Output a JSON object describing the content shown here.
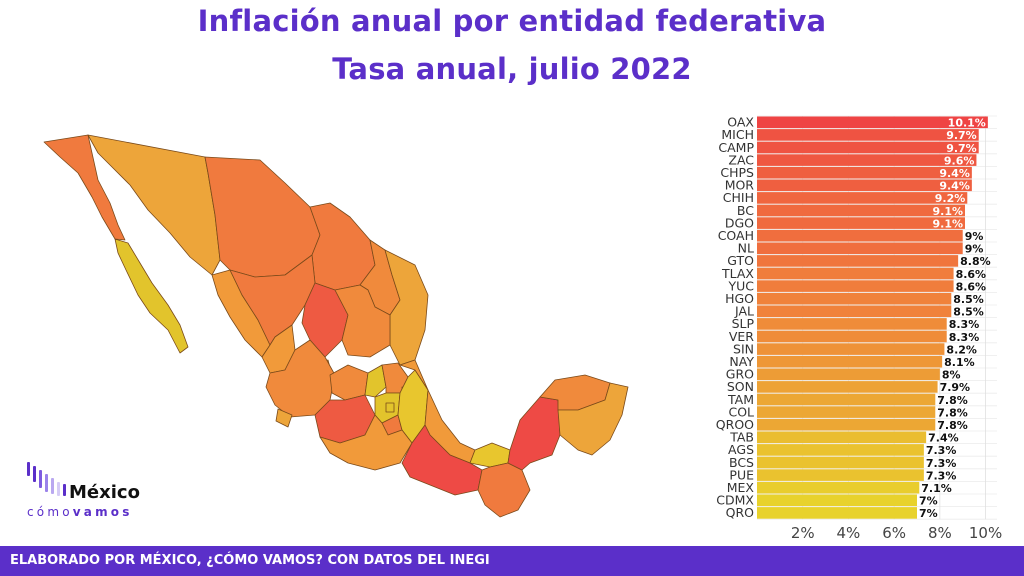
{
  "title_line1": "Inflación anual por entidad federativa",
  "title_line2": "Tasa anual, julio 2022",
  "logo": {
    "main": "México",
    "sub_a": "cómo",
    "sub_b": "vamos"
  },
  "footer": "ELABORADO POR MÉXICO, ¿CÓMO VAMOS? CON DATOS DEL INEGI",
  "colors": {
    "brand": "#5b2fc9",
    "high": "#ef4444",
    "mid": "#f07f3c",
    "low": "#e8d22c"
  },
  "chart_data": {
    "type": "bar",
    "orientation": "horizontal",
    "categories": [
      "OAX",
      "MICH",
      "CAMP",
      "ZAC",
      "CHPS",
      "MOR",
      "CHIH",
      "BC",
      "DGO",
      "COAH",
      "NL",
      "GTO",
      "TLAX",
      "YUC",
      "HGO",
      "JAL",
      "SLP",
      "VER",
      "SIN",
      "NAY",
      "GRO",
      "SON",
      "TAM",
      "COL",
      "QROO",
      "TAB",
      "AGS",
      "BCS",
      "PUE",
      "MEX",
      "CDMX",
      "QRO"
    ],
    "values": [
      10.1,
      9.7,
      9.7,
      9.6,
      9.4,
      9.4,
      9.2,
      9.1,
      9.1,
      9.0,
      9.0,
      8.8,
      8.6,
      8.6,
      8.5,
      8.5,
      8.3,
      8.3,
      8.2,
      8.1,
      8.0,
      7.9,
      7.8,
      7.8,
      7.8,
      7.4,
      7.3,
      7.3,
      7.3,
      7.1,
      7.0,
      7.0
    ],
    "labels": [
      "10.1%",
      "9.7%",
      "9.7%",
      "9.6%",
      "9.4%",
      "9.4%",
      "9.2%",
      "9.1%",
      "9.1%",
      "9%",
      "9%",
      "8.8%",
      "8.6%",
      "8.6%",
      "8.5%",
      "8.5%",
      "8.3%",
      "8.3%",
      "8.2%",
      "8.1%",
      "8%",
      "7.9%",
      "7.8%",
      "7.8%",
      "7.8%",
      "7.4%",
      "7.3%",
      "7.3%",
      "7.3%",
      "7.1%",
      "7%",
      "7%"
    ],
    "xticks": [
      "2%",
      "4%",
      "6%",
      "8%",
      "10%"
    ],
    "xtick_values": [
      2,
      4,
      6,
      8,
      10
    ],
    "xlim": [
      0,
      10.5
    ],
    "grid": true,
    "legend": "none"
  }
}
